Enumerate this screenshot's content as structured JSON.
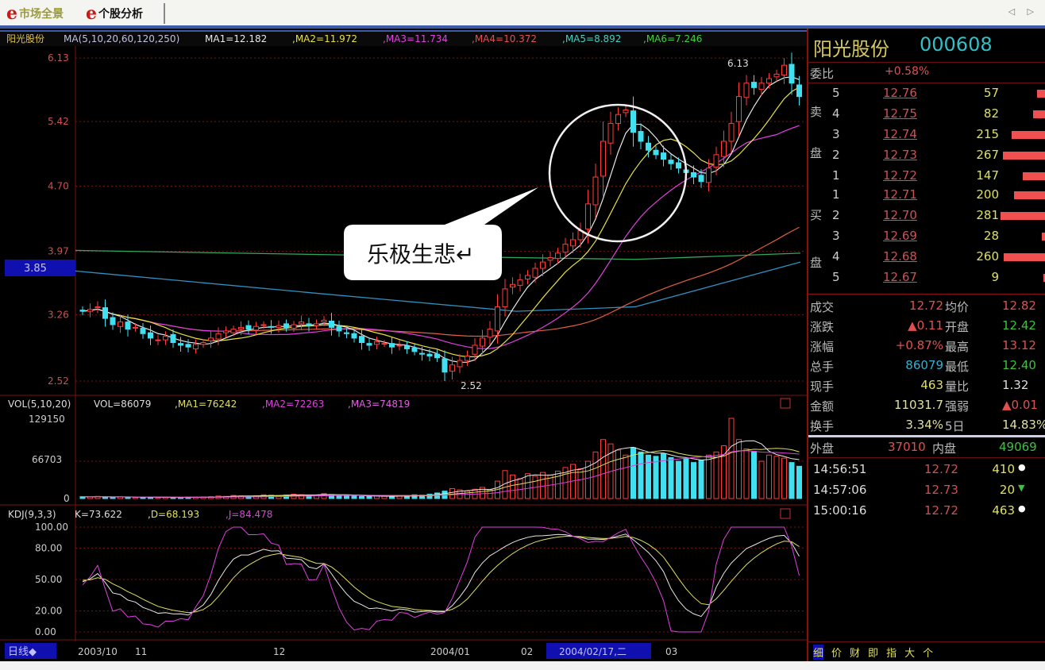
{
  "tabs": [
    {
      "label": "市场全景",
      "icon": "e-logo-icon"
    },
    {
      "label": "个股分析",
      "icon": "e-logo-icon"
    }
  ],
  "nav_arrows": "◁ ▷",
  "price_header": {
    "name": "阳光股份",
    "ma_def": "MA(5,10,20,60,120,250)",
    "ma1": "MA1=12.182",
    "ma2": ",MA2=11.972",
    "ma3": ",MA3=11.734",
    "ma4": ",MA4=10.372",
    "ma5": ",MA5=8.892",
    "ma6": ",MA6=7.246"
  },
  "price_axis": [
    "6.13",
    "5.42",
    "4.70",
    "3.97",
    "3.26",
    "2.52"
  ],
  "price_axis_values": [
    6.13,
    5.42,
    4.7,
    3.97,
    3.26,
    2.52
  ],
  "cursor_price": "3.85",
  "low_label": "2.52",
  "high_label": "6.13",
  "callout": "乐极生悲↵",
  "colors": {
    "up": "#ff3c3c",
    "down": "#40e0f0",
    "ma5": "#e8e8e8",
    "ma10": "#e8e040",
    "ma20": "#e040e0",
    "ma60": "#40e040",
    "ma120": "#30a860",
    "ma250": "#3090c0",
    "grid": "#7a1010"
  },
  "closes": [
    3.3,
    3.32,
    3.35,
    3.22,
    3.15,
    3.18,
    3.1,
    3.12,
    3.05,
    3.0,
    2.98,
    3.02,
    2.95,
    2.92,
    2.9,
    2.93,
    2.95,
    3.0,
    3.05,
    3.08,
    3.1,
    3.12,
    3.1,
    3.13,
    3.15,
    3.12,
    3.14,
    3.12,
    3.15,
    3.18,
    3.14,
    3.16,
    3.2,
    3.12,
    3.08,
    3.05,
    3.0,
    2.95,
    2.92,
    2.96,
    2.94,
    2.9,
    2.92,
    2.88,
    2.85,
    2.82,
    2.8,
    2.78,
    2.62,
    2.7,
    2.75,
    2.8,
    2.92,
    3.0,
    3.1,
    3.35,
    3.55,
    3.6,
    3.65,
    3.7,
    3.78,
    3.85,
    3.9,
    3.95,
    4.05,
    4.1,
    4.2,
    4.5,
    4.8,
    5.2,
    5.4,
    5.5,
    5.55,
    5.3,
    5.2,
    5.1,
    5.05,
    5.0,
    4.95,
    4.9,
    4.85,
    4.8,
    4.75,
    4.9,
    5.05,
    5.2,
    5.4,
    5.7,
    5.85,
    5.8,
    5.85,
    5.9,
    5.95,
    6.05,
    5.85,
    5.7
  ],
  "volumes": [
    3000,
    2500,
    3500,
    2800,
    2000,
    2600,
    2200,
    1800,
    2400,
    2000,
    1600,
    2100,
    1900,
    1700,
    2300,
    2000,
    2500,
    3000,
    4000,
    3500,
    5000,
    4200,
    3800,
    4500,
    6000,
    5200,
    4800,
    5500,
    7000,
    6200,
    5000,
    5800,
    8000,
    6500,
    5200,
    4800,
    4000,
    3500,
    3800,
    4200,
    3600,
    3300,
    4000,
    5000,
    6000,
    5500,
    7000,
    9000,
    12000,
    16000,
    14000,
    12000,
    15000,
    18000,
    14000,
    28000,
    45000,
    38000,
    32000,
    40000,
    36000,
    42000,
    38000,
    44000,
    50000,
    55000,
    48000,
    60000,
    75000,
    95000,
    88000,
    78000,
    70000,
    82000,
    75000,
    70000,
    68000,
    72000,
    66000,
    60000,
    64000,
    58000,
    62000,
    70000,
    75000,
    85000,
    129150,
    95000,
    80000,
    76000,
    60000,
    70000,
    68000,
    65000,
    58000,
    52000
  ],
  "vol_header": {
    "def": "VOL(5,10,20)",
    "vol": "VOL=86079",
    "ma1": ",MA1=76242",
    "ma2": ",MA2=72263",
    "ma3": ",MA3=74819"
  },
  "vol_axis": [
    "129150",
    "66703",
    "0"
  ],
  "kdj_header": {
    "def": "KDJ(9,3,3)",
    "k": "K=73.622",
    "d": ",D=68.193",
    "j": ",J=84.478"
  },
  "kdj_axis": [
    "100.00",
    "80.00",
    "50.00",
    "20.00",
    "0.00"
  ],
  "time_axis": {
    "period": "日线◆",
    "labels": [
      "2003/10",
      "11",
      "12",
      "2004/01",
      "02",
      "03"
    ],
    "cursor": "2004/02/17,二"
  },
  "quote": {
    "title": "阳光股份",
    "code": "000608",
    "weibi_label": "委比",
    "weibi": "+0.58%",
    "sell_label": [
      "卖",
      "盘"
    ],
    "buy_label": [
      "买",
      "盘"
    ],
    "asks": [
      {
        "lvl": "5",
        "price": "12.76",
        "vol": "57"
      },
      {
        "lvl": "4",
        "price": "12.75",
        "vol": "82"
      },
      {
        "lvl": "3",
        "price": "12.74",
        "vol": "215"
      },
      {
        "lvl": "2",
        "price": "12.73",
        "vol": "267"
      },
      {
        "lvl": "1",
        "price": "12.72",
        "vol": "147"
      }
    ],
    "bids": [
      {
        "lvl": "1",
        "price": "12.71",
        "vol": "200"
      },
      {
        "lvl": "2",
        "price": "12.70",
        "vol": "281"
      },
      {
        "lvl": "3",
        "price": "12.69",
        "vol": "28"
      },
      {
        "lvl": "4",
        "price": "12.68",
        "vol": "260"
      },
      {
        "lvl": "5",
        "price": "12.67",
        "vol": "9"
      }
    ],
    "stats": [
      {
        "l1": "成交",
        "v1": "12.72",
        "l2": "均价",
        "v2": "12.82",
        "c1": "#e05050",
        "c2": "#e05050"
      },
      {
        "l1": "涨跌",
        "v1": "▲0.11",
        "l2": "开盘",
        "v2": "12.42",
        "c1": "#e05050",
        "c2": "#40c040"
      },
      {
        "l1": "涨幅",
        "v1": "+0.87%",
        "l2": "最高",
        "v2": "13.12",
        "c1": "#e05050",
        "c2": "#e05050"
      },
      {
        "l1": "总手",
        "v1": "86079",
        "l2": "最低",
        "v2": "12.40",
        "c1": "#30b0d0",
        "c2": "#40c040"
      },
      {
        "l1": "现手",
        "v1": "463",
        "l2": "量比",
        "v2": "1.32",
        "c1": "#e0e060",
        "c2": "#ddd"
      },
      {
        "l1": "金额",
        "v1": "11031.7",
        "l2": "强弱",
        "v2": "▲0.01",
        "c1": "#e0e0a0",
        "c2": "#e05050"
      },
      {
        "l1": "换手",
        "v1": "3.34%",
        "l2": "5日",
        "v2": "14.83%",
        "c1": "#e0e0a0",
        "c2": "#e0e0a0"
      }
    ],
    "outer_label": "外盘",
    "outer": "37010",
    "inner_label": "内盘",
    "inner": "49069",
    "ticks": [
      {
        "time": "14:56:51",
        "price": "12.72",
        "vol": "410",
        "mark": "●"
      },
      {
        "time": "14:57:06",
        "price": "12.73",
        "vol": "20",
        "mark": "▼"
      },
      {
        "time": "15:00:16",
        "price": "12.72",
        "vol": "463",
        "mark": "●"
      }
    ],
    "bottom_tabs": [
      "细",
      "价",
      "财",
      "即",
      "指",
      "大",
      "个"
    ]
  }
}
